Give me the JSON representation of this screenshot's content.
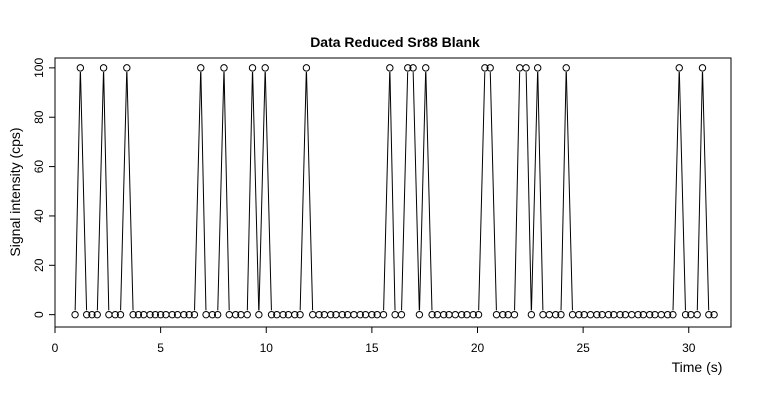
{
  "chart_data": {
    "type": "line",
    "title": "Data Reduced Sr88 Blank",
    "xlabel": "Time (s)",
    "ylabel": "Signal intensity (cps)",
    "xlim": [
      0,
      32
    ],
    "ylim": [
      -5,
      104
    ],
    "x_ticks": [
      0,
      5,
      10,
      15,
      20,
      25,
      30
    ],
    "x_tick_labels": [
      "0",
      "5",
      "10",
      "15",
      "20",
      "25",
      "30"
    ],
    "y_ticks": [
      0,
      20,
      40,
      60,
      80,
      100
    ],
    "y_tick_labels": [
      "0",
      "20",
      "40",
      "60",
      "80",
      "100"
    ],
    "grid": false,
    "markers": "open-circle",
    "line_color": "#000000",
    "series": [
      {
        "x": [
          0.95,
          1.2,
          1.5,
          1.75,
          2.0,
          2.3,
          2.55,
          2.85,
          3.1,
          3.4,
          3.7,
          3.95,
          4.2,
          4.5,
          4.75,
          5.0,
          5.25,
          5.55,
          5.8,
          6.1,
          6.35,
          6.6,
          6.9,
          7.15,
          7.45,
          7.7,
          8.0,
          8.25,
          8.55,
          8.8,
          9.1,
          9.35,
          9.65,
          9.95,
          10.25,
          10.5,
          10.8,
          11.05,
          11.35,
          11.6,
          11.9,
          12.2,
          12.5,
          12.75,
          13.05,
          13.3,
          13.6,
          13.85,
          14.15,
          14.45,
          14.7,
          15.0,
          15.25,
          15.55,
          15.85,
          16.1,
          16.4,
          16.7,
          16.95,
          17.25,
          17.55,
          17.85,
          18.1,
          18.4,
          18.65,
          18.95,
          19.25,
          19.5,
          19.8,
          20.05,
          20.35,
          20.6,
          20.9,
          21.2,
          21.45,
          21.75,
          22.0,
          22.3,
          22.55,
          22.85,
          23.1,
          23.4,
          23.7,
          23.95,
          24.2,
          24.5,
          24.8,
          25.05,
          25.35,
          25.65,
          25.9,
          26.2,
          26.45,
          26.75,
          27.0,
          27.3,
          27.6,
          27.85,
          28.15,
          28.4,
          28.7,
          29.0,
          29.25,
          29.55,
          29.85,
          30.1,
          30.4,
          30.65,
          30.95,
          31.2
        ],
        "y": [
          0,
          100,
          0,
          0,
          0,
          100,
          0,
          0,
          0,
          100,
          0,
          0,
          0,
          0,
          0,
          0,
          0,
          0,
          0,
          0,
          0,
          0,
          100,
          0,
          0,
          0,
          100,
          0,
          0,
          0,
          0,
          100,
          0,
          100,
          0,
          0,
          0,
          0,
          0,
          0,
          100,
          0,
          0,
          0,
          0,
          0,
          0,
          0,
          0,
          0,
          0,
          0,
          0,
          0,
          100,
          0,
          0,
          100,
          100,
          0,
          100,
          0,
          0,
          0,
          0,
          0,
          0,
          0,
          0,
          0,
          100,
          100,
          0,
          0,
          0,
          0,
          100,
          100,
          0,
          100,
          0,
          0,
          0,
          0,
          100,
          0,
          0,
          0,
          0,
          0,
          0,
          0,
          0,
          0,
          0,
          0,
          0,
          0,
          0,
          0,
          0,
          0,
          0,
          100,
          0,
          0,
          0,
          100,
          0,
          0
        ]
      }
    ]
  }
}
